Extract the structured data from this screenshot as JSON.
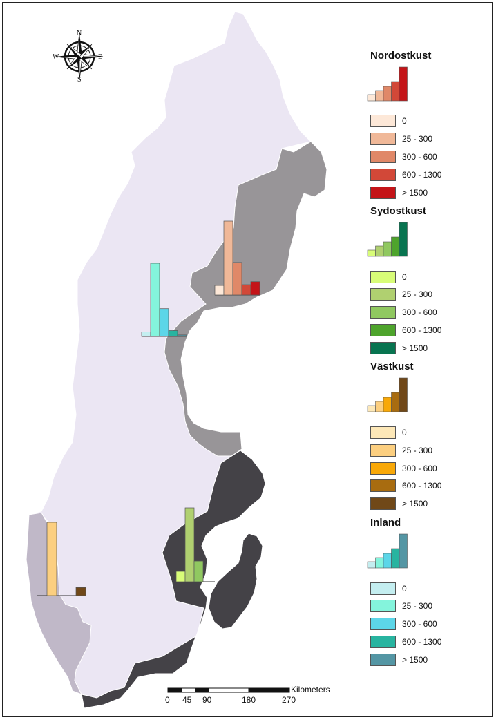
{
  "compass": {
    "n": "N",
    "s": "S",
    "e": "E",
    "w": "W"
  },
  "scale_bar": {
    "unit": "Kilometers",
    "ticks": [
      "0",
      "45",
      "90",
      "180",
      "270"
    ]
  },
  "legend": [
    {
      "title": "Nordostkust",
      "classes": [
        {
          "label": "0",
          "color": "#fde8d8"
        },
        {
          "label": "25 - 300",
          "color": "#f0b898"
        },
        {
          "label": "300 - 600",
          "color": "#e08868"
        },
        {
          "label": "600 - 1300",
          "color": "#d24838"
        },
        {
          "label": "> 1500",
          "color": "#c41418"
        }
      ]
    },
    {
      "title": "Sydostkust",
      "classes": [
        {
          "label": "0",
          "color": "#d8fc78"
        },
        {
          "label": "25 - 300",
          "color": "#b0d070"
        },
        {
          "label": "300 - 600",
          "color": "#90c860"
        },
        {
          "label": "600 - 1300",
          "color": "#4ea42c"
        },
        {
          "label": "> 1500",
          "color": "#087450"
        }
      ]
    },
    {
      "title": "Västkust",
      "classes": [
        {
          "label": "0",
          "color": "#fde8b8"
        },
        {
          "label": "25 - 300",
          "color": "#fccf80"
        },
        {
          "label": "300 - 600",
          "color": "#f8a808"
        },
        {
          "label": "600 - 1300",
          "color": "#a86c10"
        },
        {
          "label": "> 1500",
          "color": "#704818"
        }
      ]
    },
    {
      "title": "Inland",
      "classes": [
        {
          "label": "0",
          "color": "#c4eef0"
        },
        {
          "label": "25 - 300",
          "color": "#84f4dc"
        },
        {
          "label": "300 - 600",
          "color": "#5cd6e8"
        },
        {
          "label": "600 - 1300",
          "color": "#28b4a0"
        },
        {
          "label": "> 1500",
          "color": "#5496a4"
        }
      ]
    }
  ],
  "regions": [
    {
      "name": "Inland",
      "color": "#ebe6f3",
      "bars": [
        0.06,
        1.0,
        0.38,
        0.08,
        0.02
      ]
    },
    {
      "name": "Nordostkust",
      "color": "#989598",
      "bars": [
        0.13,
        1.0,
        0.44,
        0.14,
        0.18
      ]
    },
    {
      "name": "Västkust",
      "color": "#c0b8c8",
      "bars": [
        0.0,
        1.0,
        0.0,
        0.0,
        0.11
      ]
    },
    {
      "name": "Sydostkust",
      "color": "#444247",
      "bars": [
        0.14,
        1.0,
        0.28,
        0.0,
        0.0
      ]
    }
  ]
}
